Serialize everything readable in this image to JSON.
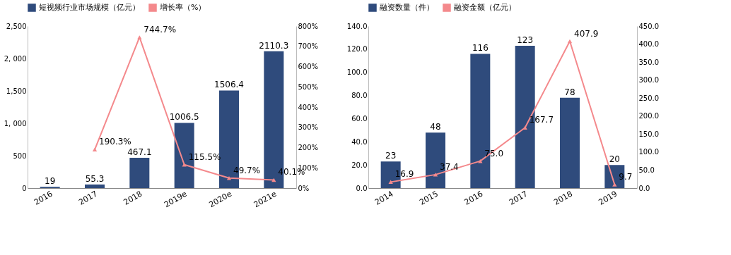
{
  "chart_data": [
    {
      "type": "bar",
      "categories": [
        "2016",
        "2017",
        "2018",
        "2019e",
        "2020e",
        "2021e"
      ],
      "legend": "top",
      "grid": false,
      "series": [
        {
          "name": "短视频行业市场规模（亿元）",
          "color": "#2f4b7c",
          "values": [
            19,
            55.3,
            467.1,
            1006.5,
            1506.4,
            2110.3
          ],
          "value_labels": [
            "19",
            "55.3",
            "467.1",
            "1006.5",
            "1506.4",
            "2110.3"
          ]
        },
        {
          "name": "增长率（%）",
          "type": "line",
          "axis": "y2",
          "marker": "triangle",
          "color": "#f4898c",
          "values": [
            null,
            190.3,
            744.7,
            115.5,
            49.7,
            40.1
          ],
          "value_labels": [
            null,
            "190.3%",
            "744.7%",
            "115.5%",
            "49.7%",
            "40.1%"
          ]
        }
      ],
      "ylim": [
        0,
        2500
      ],
      "yticks": [
        0,
        500,
        {
          "value": 1000,
          "label": "1, 000"
        },
        {
          "value": 1500,
          "label": "1,500"
        },
        {
          "value": 2000,
          "label": "2, 000"
        },
        {
          "value": 2500,
          "label": "2,500"
        }
      ],
      "y2lim": [
        0,
        800
      ],
      "y2ticks": [
        {
          "value": 0,
          "label": "0%"
        },
        {
          "value": 100,
          "label": "100%"
        },
        {
          "value": 200,
          "label": "200%"
        },
        {
          "value": 300,
          "label": "300%"
        },
        {
          "value": 400,
          "label": "400%"
        },
        {
          "value": 500,
          "label": "500%"
        },
        {
          "value": 600,
          "label": "600%"
        },
        {
          "value": 700,
          "label": "700%"
        },
        {
          "value": 800,
          "label": "800%"
        }
      ]
    },
    {
      "type": "bar",
      "categories": [
        "2014",
        "2015",
        "2016",
        "2017",
        "2018",
        "2019"
      ],
      "legend": "top",
      "grid": false,
      "series": [
        {
          "name": "融资数量（件）",
          "color": "#2f4b7c",
          "values": [
            23,
            48,
            116,
            123,
            78,
            20
          ],
          "value_labels": [
            "23",
            "48",
            "116",
            "123",
            "78",
            "20"
          ]
        },
        {
          "name": "融资金额（亿元）",
          "type": "line",
          "axis": "y2",
          "marker": "triangle",
          "color": "#f4898c",
          "values": [
            16.9,
            37.4,
            75.0,
            167.7,
            407.9,
            9.7
          ],
          "value_labels": [
            "16.9",
            "37.4",
            "75.0",
            "167.7",
            "407.9",
            "9.7"
          ]
        }
      ],
      "ylim": [
        0,
        140
      ],
      "yticks": [
        {
          "value": 0,
          "label": "0.0"
        },
        {
          "value": 20,
          "label": "20.0"
        },
        {
          "value": 40,
          "label": "40.0"
        },
        {
          "value": 60,
          "label": "60.0"
        },
        {
          "value": 80,
          "label": "80.0"
        },
        {
          "value": 100,
          "label": "100.0"
        },
        {
          "value": 120,
          "label": "120.0"
        },
        {
          "value": 140,
          "label": "140.0"
        }
      ],
      "y2lim": [
        0,
        450
      ],
      "y2ticks": [
        {
          "value": 0,
          "label": "0.0"
        },
        {
          "value": 50,
          "label": "50.0"
        },
        {
          "value": 100,
          "label": "100.0"
        },
        {
          "value": 150,
          "label": "150.0"
        },
        {
          "value": 200,
          "label": "200.0"
        },
        {
          "value": 250,
          "label": "250.0"
        },
        {
          "value": 300,
          "label": "300.0"
        },
        {
          "value": 350,
          "label": "350.0"
        },
        {
          "value": 400,
          "label": "400.0"
        },
        {
          "value": 450,
          "label": "450.0"
        }
      ]
    }
  ]
}
